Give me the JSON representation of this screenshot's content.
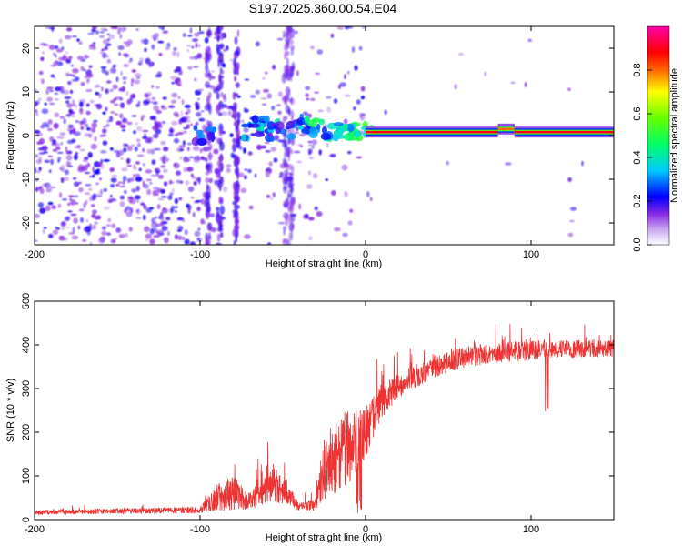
{
  "title": "S197.2025.360.00.54.E04",
  "chart_data": [
    {
      "type": "heatmap",
      "name": "spectrogram",
      "xlabel": "Height of straight line (km)",
      "ylabel": "Frequency (Hz)",
      "xlim": [
        -200,
        150
      ],
      "ylim": [
        -25,
        25
      ],
      "xticks": [
        -200,
        -100,
        0,
        100
      ],
      "yticks": [
        -20,
        -10,
        0,
        10,
        20
      ],
      "colorbar": {
        "label": "Normalized spectral amplitude",
        "range": [
          0,
          1
        ],
        "ticks": [
          0.0,
          0.2,
          0.4,
          0.6,
          0.8
        ],
        "colors": [
          "#ffffff",
          "#8a2be2",
          "#0000ff",
          "#00ffff",
          "#00ff00",
          "#ffff00",
          "#ff0000",
          "#ff00ff"
        ]
      },
      "line_segments": [
        {
          "x": [
            0,
            80
          ],
          "freq": 0.8,
          "amplitude": 0.9
        },
        {
          "x": [
            80,
            90
          ],
          "freq": 1.5,
          "amplitude": 0.8
        },
        {
          "x": [
            90,
            150
          ],
          "freq": 0.8,
          "amplitude": 0.9
        }
      ],
      "bright_blobs": [
        {
          "x": -97,
          "freq": 0,
          "amplitude": 0.3
        },
        {
          "x": -68,
          "freq": 1,
          "amplitude": 0.35
        },
        {
          "x": -60,
          "freq": 2,
          "amplitude": 0.4
        },
        {
          "x": -52,
          "freq": 1,
          "amplitude": 0.3
        },
        {
          "x": -40,
          "freq": 3,
          "amplitude": 0.3
        },
        {
          "x": -32,
          "freq": 2,
          "amplitude": 0.45
        },
        {
          "x": -20,
          "freq": 1,
          "amplitude": 0.45
        },
        {
          "x": -10,
          "freq": 1,
          "amplitude": 0.5
        },
        {
          "x": -3,
          "freq": 1.5,
          "amplitude": 0.55
        }
      ]
    },
    {
      "type": "line",
      "name": "snr",
      "xlabel": "Height of straight line (km)",
      "ylabel": "SNR (10 * v/v)",
      "xlim": [
        -200,
        150
      ],
      "ylim": [
        0,
        500
      ],
      "xticks": [
        -200,
        -100,
        0,
        100
      ],
      "yticks": [
        0,
        100,
        200,
        300,
        400,
        500
      ],
      "color": "#ee3333",
      "envelope": [
        {
          "x": -200,
          "base": 15,
          "amp": 10
        },
        {
          "x": -100,
          "base": 20,
          "amp": 15
        },
        {
          "x": -90,
          "base": 40,
          "amp": 60
        },
        {
          "x": -80,
          "base": 50,
          "amp": 80
        },
        {
          "x": -70,
          "base": 35,
          "amp": 40
        },
        {
          "x": -60,
          "base": 70,
          "amp": 90
        },
        {
          "x": -50,
          "base": 60,
          "amp": 70
        },
        {
          "x": -40,
          "base": 25,
          "amp": 20
        },
        {
          "x": -30,
          "base": 30,
          "amp": 30
        },
        {
          "x": -25,
          "base": 100,
          "amp": 150
        },
        {
          "x": -15,
          "base": 130,
          "amp": 180
        },
        {
          "x": -5,
          "base": 150,
          "amp": 160
        },
        {
          "x": 0,
          "base": 180,
          "amp": 120
        },
        {
          "x": 10,
          "base": 260,
          "amp": 80
        },
        {
          "x": 20,
          "base": 300,
          "amp": 60
        },
        {
          "x": 40,
          "base": 340,
          "amp": 50
        },
        {
          "x": 60,
          "base": 365,
          "amp": 50
        },
        {
          "x": 80,
          "base": 375,
          "amp": 50
        },
        {
          "x": 100,
          "base": 380,
          "amp": 45
        },
        {
          "x": 120,
          "base": 385,
          "amp": 40
        },
        {
          "x": 150,
          "base": 385,
          "amp": 40
        }
      ]
    }
  ]
}
